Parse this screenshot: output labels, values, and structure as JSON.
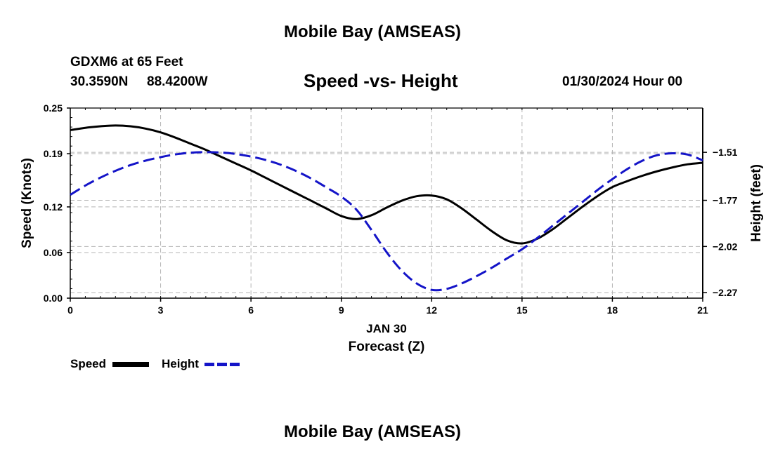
{
  "header": {
    "title": "Mobile Bay (AMSEAS)",
    "station_line1": "GDXM6 at 65 Feet",
    "station_lat": "30.3590N",
    "station_lon": "88.4200W",
    "subtitle": "Speed -vs- Height",
    "datetime": "01/30/2024 Hour 00",
    "footer_title": "Mobile Bay (AMSEAS)"
  },
  "legend": {
    "speed_label": "Speed",
    "height_label": "Height"
  },
  "colors": {
    "speed": "#000000",
    "height": "#1414c8",
    "grid": "#b4b4b4"
  },
  "chart_data": {
    "type": "line",
    "title": "Speed -vs- Height",
    "x_axis": {
      "label": "Forecast (Z)",
      "date_label": "JAN 30",
      "range": [
        0,
        21
      ],
      "ticks": [
        0,
        3,
        6,
        9,
        12,
        15,
        18,
        21
      ]
    },
    "y_left": {
      "label": "Speed (Knots)",
      "range": [
        0,
        0.25
      ],
      "ticks": [
        0.0,
        0.06,
        0.12,
        0.19,
        0.25
      ],
      "tick_labels": [
        "0.00",
        "0.06",
        "0.12",
        "0.19",
        "0.25"
      ]
    },
    "y_right": {
      "label": "Height (feet)",
      "range": [
        -2.3,
        -1.27
      ],
      "ticks": [
        -2.27,
        -2.02,
        -1.77,
        -1.51
      ],
      "tick_labels": [
        "−2.27",
        "−2.02",
        "−1.77",
        "−1.51"
      ]
    },
    "grid": true,
    "series": [
      {
        "name": "Speed",
        "axis": "left",
        "style": "solid",
        "x": [
          0,
          0.5,
          1,
          1.5,
          2,
          2.5,
          3,
          3.5,
          4,
          4.5,
          5,
          5.5,
          6,
          6.5,
          7,
          7.5,
          8,
          8.5,
          9,
          9.5,
          10,
          10.5,
          11,
          11.5,
          12,
          12.5,
          13,
          13.5,
          14,
          14.5,
          15,
          15.5,
          16,
          16.5,
          17,
          17.5,
          18,
          18.5,
          19,
          19.5,
          20,
          20.5,
          21
        ],
        "values": [
          0.221,
          0.224,
          0.226,
          0.227,
          0.226,
          0.223,
          0.218,
          0.211,
          0.203,
          0.195,
          0.186,
          0.177,
          0.168,
          0.158,
          0.148,
          0.138,
          0.128,
          0.118,
          0.108,
          0.104,
          0.109,
          0.119,
          0.128,
          0.134,
          0.135,
          0.13,
          0.118,
          0.103,
          0.088,
          0.076,
          0.072,
          0.078,
          0.09,
          0.105,
          0.12,
          0.134,
          0.146,
          0.154,
          0.161,
          0.167,
          0.172,
          0.176,
          0.178
        ]
      },
      {
        "name": "Height",
        "axis": "right",
        "style": "dashed",
        "x": [
          0,
          0.5,
          1,
          1.5,
          2,
          2.5,
          3,
          3.5,
          4,
          4.5,
          5,
          5.5,
          6,
          6.5,
          7,
          7.5,
          8,
          8.5,
          9,
          9.5,
          10,
          10.5,
          11,
          11.5,
          12,
          12.5,
          13,
          13.5,
          14,
          14.5,
          15,
          15.5,
          16,
          16.5,
          17,
          17.5,
          18,
          18.5,
          19,
          19.5,
          20,
          20.5,
          21
        ],
        "values": [
          -1.74,
          -1.69,
          -1.647,
          -1.61,
          -1.579,
          -1.555,
          -1.536,
          -1.521,
          -1.512,
          -1.509,
          -1.511,
          -1.519,
          -1.533,
          -1.552,
          -1.578,
          -1.611,
          -1.652,
          -1.7,
          -1.75,
          -1.82,
          -1.93,
          -2.05,
          -2.15,
          -2.22,
          -2.255,
          -2.25,
          -2.22,
          -2.18,
          -2.135,
          -2.085,
          -2.035,
          -1.975,
          -1.91,
          -1.845,
          -1.78,
          -1.715,
          -1.655,
          -1.6,
          -1.555,
          -1.525,
          -1.515,
          -1.522,
          -1.553
        ]
      }
    ]
  }
}
